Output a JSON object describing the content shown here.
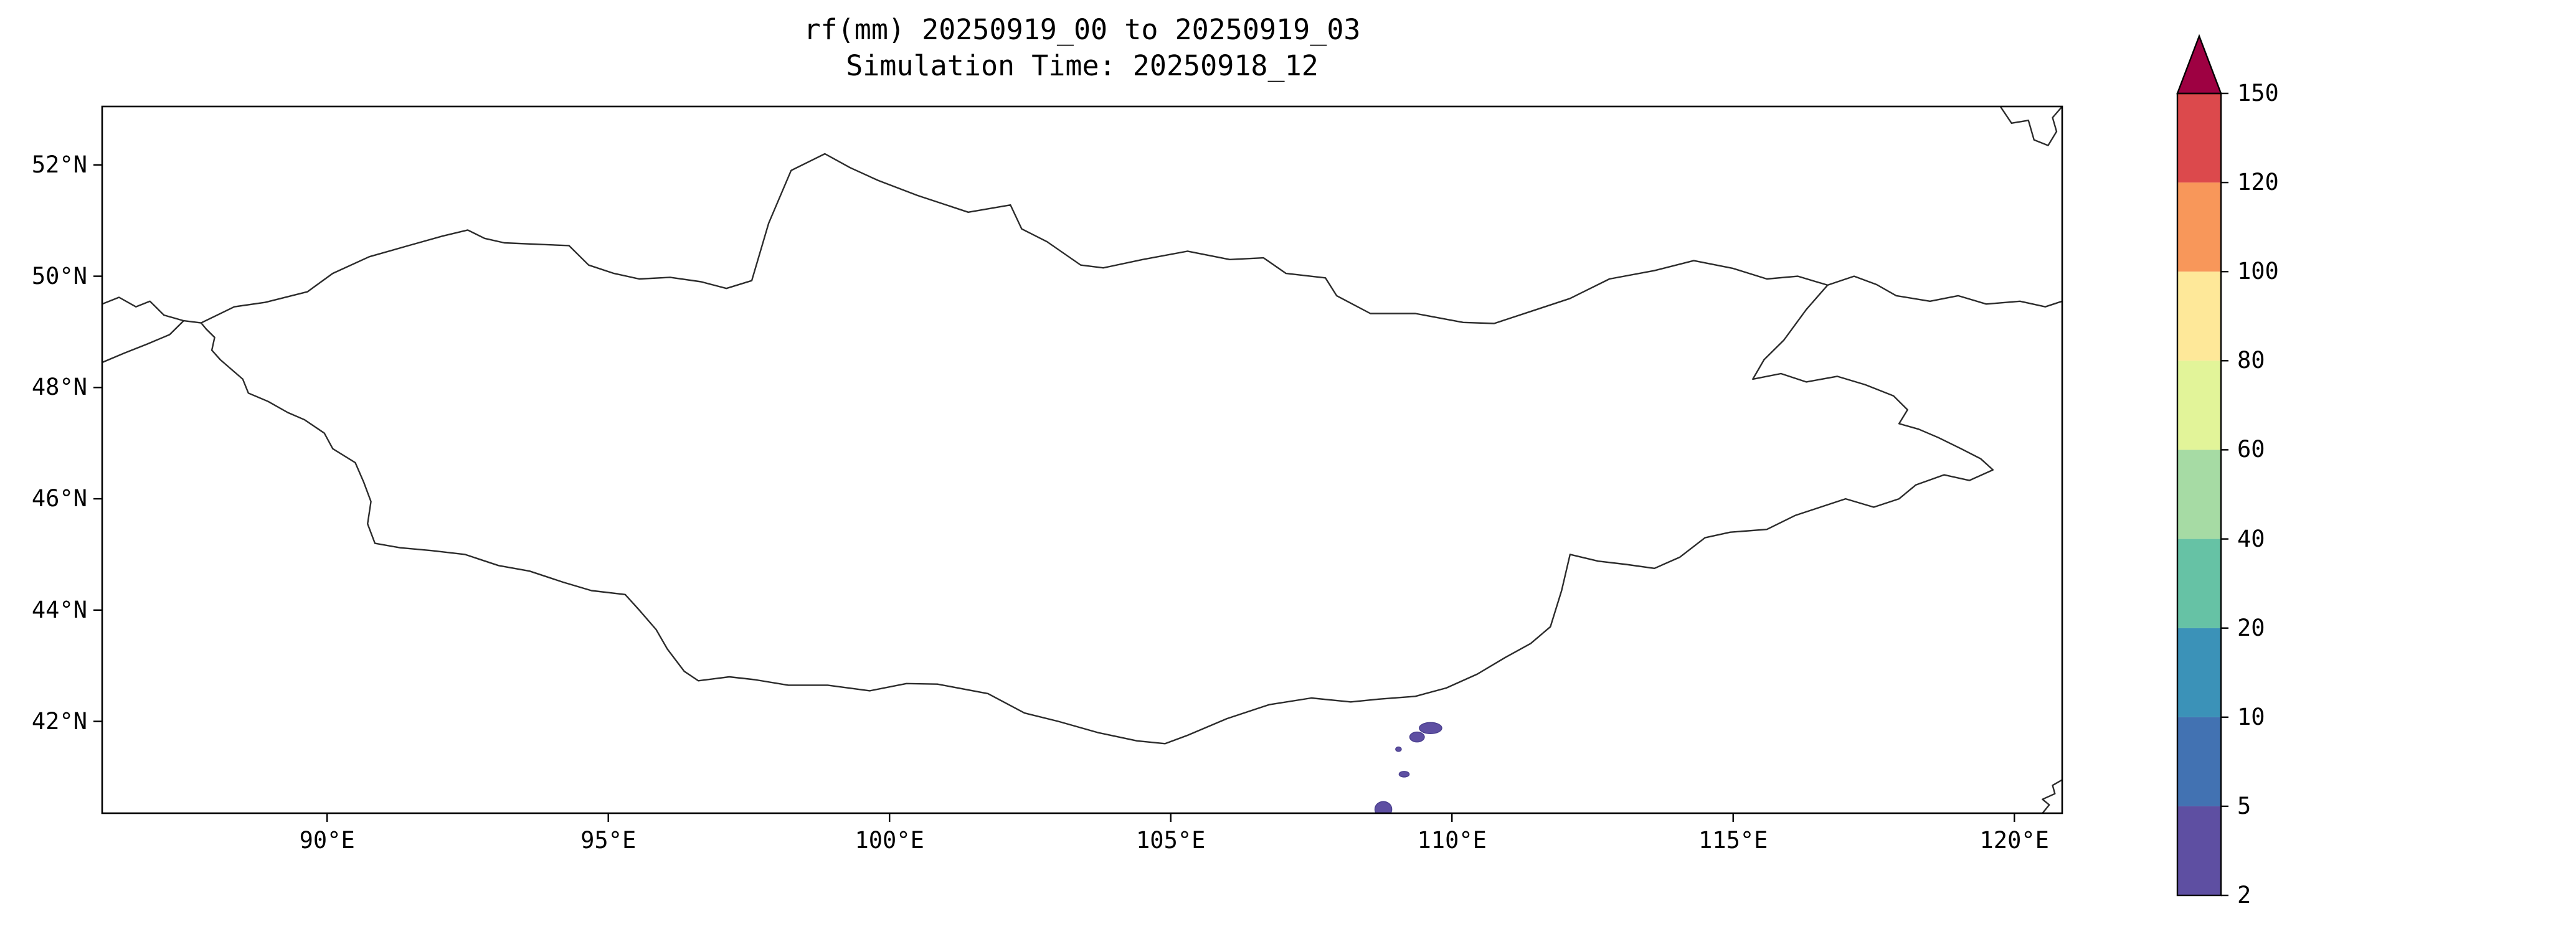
{
  "chart_data": {
    "type": "map-contour",
    "title": "rf(mm) 20250919_00 to 20250919_03",
    "subtitle": "Simulation Time: 20250918_12",
    "variable": "rf(mm)",
    "extent": {
      "lon_min": 86.0,
      "lon_max": 120.85,
      "lat_min": 40.35,
      "lat_max": 53.05
    },
    "grid": "off",
    "x_ticks": [
      {
        "lon": 90,
        "label": "90°E"
      },
      {
        "lon": 95,
        "label": "95°E"
      },
      {
        "lon": 100,
        "label": "100°E"
      },
      {
        "lon": 105,
        "label": "105°E"
      },
      {
        "lon": 110,
        "label": "110°E"
      },
      {
        "lon": 115,
        "label": "115°E"
      },
      {
        "lon": 120,
        "label": "120°E"
      }
    ],
    "y_ticks": [
      {
        "lat": 52,
        "label": "52°N"
      },
      {
        "lat": 50,
        "label": "50°N"
      },
      {
        "lat": 48,
        "label": "48°N"
      },
      {
        "lat": 46,
        "label": "46°N"
      },
      {
        "lat": 44,
        "label": "44°N"
      },
      {
        "lat": 42,
        "label": "42°N"
      }
    ],
    "colorbar": {
      "orientation": "vertical",
      "extend": "max",
      "levels": [
        2,
        5,
        10,
        20,
        40,
        60,
        80,
        100,
        120,
        150
      ],
      "tick_labels": [
        "2",
        "5",
        "10",
        "20",
        "40",
        "60",
        "80",
        "100",
        "120",
        "150"
      ],
      "segment_colors": [
        "#5e4fa2",
        "#4272b2",
        "#3b92b8",
        "#66c2a5",
        "#a6dba4",
        "#e2f499",
        "#fee899",
        "#f8975a",
        "#dc494c"
      ],
      "over_color": "#9e0142",
      "outline_color": "#000000"
    },
    "outline_color": "#2b2b2b",
    "frame_color": "#000000",
    "map_outlines": {
      "mongolia": [
        [
          87.76,
          49.16
        ],
        [
          88.35,
          49.45
        ],
        [
          88.9,
          49.53
        ],
        [
          89.65,
          49.72
        ],
        [
          90.1,
          50.05
        ],
        [
          90.75,
          50.35
        ],
        [
          91.45,
          50.55
        ],
        [
          92.05,
          50.72
        ],
        [
          92.5,
          50.83
        ],
        [
          92.8,
          50.68
        ],
        [
          93.15,
          50.6
        ],
        [
          93.8,
          50.57
        ],
        [
          94.3,
          50.55
        ],
        [
          94.65,
          50.2
        ],
        [
          95.1,
          50.05
        ],
        [
          95.55,
          49.95
        ],
        [
          96.1,
          49.98
        ],
        [
          96.65,
          49.9
        ],
        [
          97.1,
          49.78
        ],
        [
          97.55,
          49.92
        ],
        [
          97.85,
          50.95
        ],
        [
          98.25,
          51.9
        ],
        [
          98.85,
          52.2
        ],
        [
          99.3,
          51.95
        ],
        [
          99.8,
          51.72
        ],
        [
          100.5,
          51.45
        ],
        [
          101.4,
          51.15
        ],
        [
          102.15,
          51.28
        ],
        [
          102.35,
          50.85
        ],
        [
          102.8,
          50.62
        ],
        [
          103.4,
          50.2
        ],
        [
          103.8,
          50.15
        ],
        [
          104.5,
          50.3
        ],
        [
          105.3,
          50.45
        ],
        [
          106.05,
          50.3
        ],
        [
          106.65,
          50.33
        ],
        [
          107.05,
          50.05
        ],
        [
          107.75,
          49.97
        ],
        [
          107.95,
          49.65
        ],
        [
          108.55,
          49.33
        ],
        [
          109.35,
          49.33
        ],
        [
          110.2,
          49.17
        ],
        [
          110.75,
          49.15
        ],
        [
          111.35,
          49.35
        ],
        [
          112.1,
          49.6
        ],
        [
          112.8,
          49.95
        ],
        [
          113.6,
          50.1
        ],
        [
          114.3,
          50.28
        ],
        [
          115.0,
          50.14
        ],
        [
          115.6,
          49.95
        ],
        [
          116.15,
          50.0
        ],
        [
          116.68,
          49.84
        ],
        [
          116.3,
          49.4
        ],
        [
          115.9,
          48.85
        ],
        [
          115.55,
          48.5
        ],
        [
          115.35,
          48.15
        ],
        [
          115.85,
          48.25
        ],
        [
          116.3,
          48.1
        ],
        [
          116.85,
          48.2
        ],
        [
          117.35,
          48.05
        ],
        [
          117.85,
          47.85
        ],
        [
          118.1,
          47.6
        ],
        [
          117.95,
          47.35
        ],
        [
          118.3,
          47.25
        ],
        [
          118.65,
          47.1
        ],
        [
          119.05,
          46.9
        ],
        [
          119.4,
          46.72
        ],
        [
          119.62,
          46.52
        ],
        [
          119.2,
          46.33
        ],
        [
          118.75,
          46.43
        ],
        [
          118.25,
          46.25
        ],
        [
          117.95,
          46.0
        ],
        [
          117.5,
          45.85
        ],
        [
          117.0,
          46.0
        ],
        [
          116.55,
          45.85
        ],
        [
          116.1,
          45.7
        ],
        [
          115.6,
          45.45
        ],
        [
          114.95,
          45.4
        ],
        [
          114.5,
          45.3
        ],
        [
          114.05,
          44.95
        ],
        [
          113.6,
          44.75
        ],
        [
          113.1,
          44.82
        ],
        [
          112.6,
          44.88
        ],
        [
          112.1,
          45.0
        ],
        [
          111.95,
          44.35
        ],
        [
          111.75,
          43.7
        ],
        [
          111.4,
          43.4
        ],
        [
          110.95,
          43.15
        ],
        [
          110.45,
          42.85
        ],
        [
          109.9,
          42.6
        ],
        [
          109.35,
          42.45
        ],
        [
          108.7,
          42.4
        ],
        [
          108.2,
          42.35
        ],
        [
          107.5,
          42.42
        ],
        [
          106.75,
          42.3
        ],
        [
          106.0,
          42.05
        ],
        [
          105.3,
          41.75
        ],
        [
          104.9,
          41.6
        ],
        [
          104.4,
          41.65
        ],
        [
          103.7,
          41.8
        ],
        [
          103.0,
          42.0
        ],
        [
          102.4,
          42.15
        ],
        [
          101.75,
          42.5
        ],
        [
          100.85,
          42.67
        ],
        [
          100.3,
          42.68
        ],
        [
          99.65,
          42.55
        ],
        [
          98.9,
          42.65
        ],
        [
          98.2,
          42.65
        ],
        [
          97.6,
          42.75
        ],
        [
          97.15,
          42.8
        ],
        [
          96.6,
          42.73
        ],
        [
          96.35,
          42.9
        ],
        [
          96.05,
          43.3
        ],
        [
          95.85,
          43.65
        ],
        [
          95.55,
          44.0
        ],
        [
          95.3,
          44.28
        ],
        [
          94.7,
          44.35
        ],
        [
          94.2,
          44.5
        ],
        [
          93.6,
          44.7
        ],
        [
          93.05,
          44.8
        ],
        [
          92.45,
          45.0
        ],
        [
          91.85,
          45.07
        ],
        [
          91.3,
          45.12
        ],
        [
          90.85,
          45.2
        ],
        [
          90.72,
          45.55
        ],
        [
          90.78,
          45.95
        ],
        [
          90.65,
          46.3
        ],
        [
          90.5,
          46.65
        ],
        [
          90.1,
          46.9
        ],
        [
          89.95,
          47.18
        ],
        [
          89.6,
          47.42
        ],
        [
          89.3,
          47.55
        ],
        [
          88.95,
          47.75
        ],
        [
          88.6,
          47.9
        ],
        [
          88.5,
          48.15
        ],
        [
          88.1,
          48.5
        ],
        [
          87.95,
          48.67
        ],
        [
          88.0,
          48.9
        ],
        [
          87.85,
          49.05
        ]
      ],
      "fragments": [
        [
          [
            86.0,
            49.5
          ],
          [
            86.3,
            49.62
          ],
          [
            86.6,
            49.45
          ],
          [
            86.85,
            49.55
          ],
          [
            87.1,
            49.3
          ],
          [
            87.45,
            49.2
          ],
          [
            87.76,
            49.16
          ]
        ],
        [
          [
            87.45,
            49.2
          ],
          [
            87.2,
            48.95
          ],
          [
            86.8,
            48.78
          ],
          [
            86.4,
            48.62
          ],
          [
            86.0,
            48.45
          ]
        ],
        [
          [
            119.75,
            53.05
          ],
          [
            119.95,
            52.75
          ],
          [
            120.25,
            52.8
          ],
          [
            120.35,
            52.45
          ],
          [
            120.6,
            52.35
          ],
          [
            120.75,
            52.6
          ],
          [
            120.68,
            52.85
          ],
          [
            120.85,
            53.05
          ]
        ],
        [
          [
            116.68,
            49.84
          ],
          [
            117.15,
            50.0
          ],
          [
            117.55,
            49.85
          ],
          [
            117.9,
            49.65
          ],
          [
            118.5,
            49.55
          ],
          [
            119.0,
            49.65
          ],
          [
            119.5,
            49.5
          ],
          [
            120.1,
            49.55
          ],
          [
            120.55,
            49.45
          ],
          [
            120.85,
            49.55
          ]
        ],
        [
          [
            120.5,
            40.35
          ],
          [
            120.62,
            40.5
          ],
          [
            120.5,
            40.6
          ],
          [
            120.72,
            40.7
          ],
          [
            120.68,
            40.85
          ],
          [
            120.85,
            40.95
          ]
        ]
      ]
    },
    "precip_cells": [
      {
        "lon": 109.62,
        "lat": 41.88,
        "rx_deg": 0.2,
        "ry_deg": 0.1,
        "color": "#5e4fa2"
      },
      {
        "lon": 109.38,
        "lat": 41.72,
        "rx_deg": 0.13,
        "ry_deg": 0.09,
        "color": "#5e4fa2"
      },
      {
        "lon": 109.05,
        "lat": 41.5,
        "rx_deg": 0.05,
        "ry_deg": 0.04,
        "color": "#5e4fa2"
      },
      {
        "lon": 109.15,
        "lat": 41.05,
        "rx_deg": 0.09,
        "ry_deg": 0.05,
        "color": "#5e4fa2"
      },
      {
        "lon": 108.78,
        "lat": 40.42,
        "rx_deg": 0.15,
        "ry_deg": 0.14,
        "color": "#5e4fa2"
      }
    ]
  }
}
